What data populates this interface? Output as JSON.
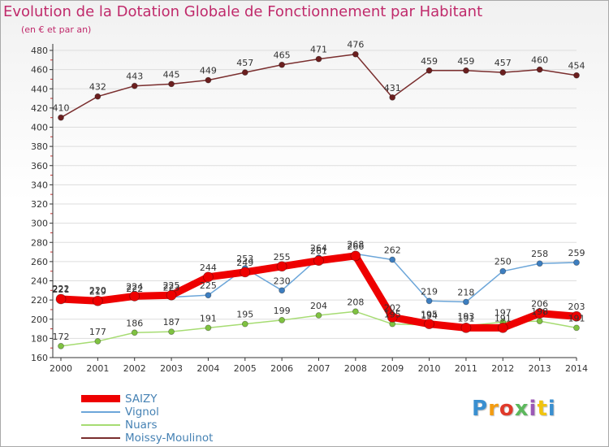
{
  "header": {
    "title": "Evolution de la Dotation Globale de Fonctionnement par Habitant",
    "subtitle": "(en € et par an)"
  },
  "logo": {
    "text": "Proxiti",
    "colors": [
      "#3a8fd0",
      "#f39c12",
      "#e03a2a",
      "#5cb85c",
      "#9b59b6",
      "#f1c40f",
      "#3a8fd0"
    ]
  },
  "colors": {
    "saizy": "#ee0000",
    "vignol": "#6ca6d9",
    "nuars": "#a6dc72",
    "moissy": "#7a2e2e",
    "axis": "#333333",
    "grid": "#dddddd",
    "title": "#c02a6b",
    "legend_text": "#4682b4"
  },
  "chart_data": {
    "type": "line",
    "title": "Evolution de la Dotation Globale de Fonctionnement par Habitant",
    "subtitle": "(en € et par an)",
    "xlabel": "",
    "ylabel": "",
    "ylim": [
      160,
      480
    ],
    "ytick_step": 20,
    "yticks": [
      "160",
      "180",
      "200",
      "220",
      "240",
      "260",
      "280",
      "300",
      "320",
      "340",
      "360",
      "380",
      "400",
      "420",
      "440",
      "460",
      "480"
    ],
    "categories": [
      "2000",
      "2001",
      "2002",
      "2003",
      "2004",
      "2005",
      "2006",
      "2007",
      "2008",
      "2009",
      "2010",
      "2011",
      "2012",
      "2013",
      "2014"
    ],
    "series": [
      {
        "key": "moissy",
        "name": "Moissy-Moulinot",
        "values": [
          410,
          432,
          443,
          445,
          449,
          457,
          465,
          471,
          476,
          431,
          459,
          459,
          457,
          460,
          454
        ]
      },
      {
        "key": "vignol",
        "name": "Vignol",
        "values": [
          222,
          220,
          222,
          223,
          225,
          253,
          230,
          264,
          268,
          262,
          219,
          218,
          250,
          258,
          259
        ]
      },
      {
        "key": "nuars",
        "name": "Nuars",
        "values": [
          172,
          177,
          186,
          187,
          191,
          195,
          199,
          204,
          208,
          195,
          194,
          193,
          197,
          198,
          191
        ]
      },
      {
        "key": "saizy",
        "name": "SAIZY",
        "values": [
          221,
          219,
          224,
          225,
          244,
          249,
          255,
          261,
          266,
          202,
          195,
          191,
          191,
          206,
          203
        ]
      }
    ],
    "legend": [
      "SAIZY",
      "Vignol",
      "Nuars",
      "Moissy-Moulinot"
    ],
    "legend_position": "bottom-left"
  }
}
